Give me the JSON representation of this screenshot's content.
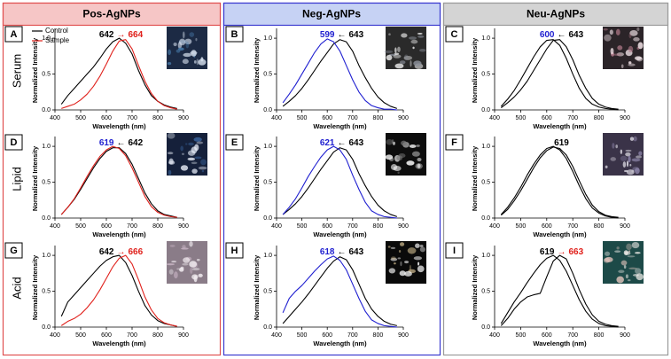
{
  "column_titles": [
    "Pos-AgNPs",
    "Neg-AgNPs",
    "Neu-AgNPs"
  ],
  "row_titles": [
    "Serum",
    "Lipid",
    "Acid"
  ],
  "chart_data": [
    {
      "type": "line",
      "panel": "A",
      "xlabel": "Wavelength (nm)",
      "ylabel": "Normalized Intensity",
      "annotation": [
        {
          "text": "642",
          "color": "#000000"
        },
        {
          "text": "→",
          "color": "#e0201b"
        },
        {
          "text": "664",
          "color": "#e0201b"
        }
      ],
      "xlim": [
        400,
        900
      ],
      "ylim": [
        0,
        1.1
      ],
      "xticks": [
        400,
        500,
        600,
        700,
        800,
        900
      ],
      "yticks": [
        {
          "value": 0,
          "label": "0.0"
        },
        {
          "value": 0.5,
          "label": "0.5"
        },
        {
          "value": 1,
          "label": "1.0"
        }
      ],
      "x": [
        425,
        450,
        475,
        500,
        525,
        550,
        575,
        600,
        625,
        650,
        675,
        700,
        725,
        750,
        775,
        800,
        825,
        850,
        875
      ],
      "series": [
        {
          "name": "Control",
          "color": "#000000",
          "values": [
            0.08,
            0.2,
            0.3,
            0.4,
            0.5,
            0.6,
            0.72,
            0.85,
            0.95,
            1.0,
            0.93,
            0.78,
            0.55,
            0.35,
            0.2,
            0.12,
            0.07,
            0.04,
            0.02
          ]
        },
        {
          "name": "Sample",
          "color": "#e0201b",
          "values": [
            0.02,
            0.05,
            0.08,
            0.14,
            0.22,
            0.33,
            0.47,
            0.64,
            0.82,
            0.96,
            0.98,
            0.85,
            0.62,
            0.4,
            0.23,
            0.12,
            0.06,
            0.03,
            0.01
          ]
        }
      ]
    },
    {
      "type": "line",
      "panel": "B",
      "xlabel": "Wavelength (nm)",
      "ylabel": "Normalized Intensity",
      "annotation": [
        {
          "text": "599",
          "color": "#1f1fd0"
        },
        {
          "text": "←",
          "color": "#000000"
        },
        {
          "text": "643",
          "color": "#000000"
        }
      ],
      "xlim": [
        400,
        900
      ],
      "ylim": [
        0,
        1.1
      ],
      "xticks": [
        400,
        500,
        600,
        700,
        800,
        900
      ],
      "yticks": [
        {
          "value": 0,
          "label": "0.0"
        },
        {
          "value": 0.5,
          "label": "0.5"
        },
        {
          "value": 1,
          "label": "1.0"
        }
      ],
      "x": [
        425,
        450,
        475,
        500,
        525,
        550,
        575,
        600,
        625,
        650,
        675,
        700,
        725,
        750,
        775,
        800,
        825,
        850,
        875
      ],
      "series": [
        {
          "color": "#000000",
          "values": [
            0.05,
            0.12,
            0.2,
            0.3,
            0.42,
            0.55,
            0.68,
            0.8,
            0.92,
            0.98,
            0.95,
            0.82,
            0.62,
            0.45,
            0.3,
            0.18,
            0.1,
            0.05,
            0.02
          ]
        },
        {
          "color": "#1f1fd0",
          "values": [
            0.1,
            0.22,
            0.35,
            0.5,
            0.65,
            0.8,
            0.92,
            0.99,
            0.95,
            0.82,
            0.62,
            0.42,
            0.25,
            0.13,
            0.06,
            0.03,
            0.01,
            0.01,
            0.0
          ]
        }
      ]
    },
    {
      "type": "line",
      "panel": "C",
      "xlabel": "Wavelength (nm)",
      "ylabel": "Normalized Intensity",
      "annotation": [
        {
          "text": "600",
          "color": "#1f1fd0"
        },
        {
          "text": "←",
          "color": "#000000"
        },
        {
          "text": "643",
          "color": "#000000"
        }
      ],
      "xlim": [
        400,
        900
      ],
      "ylim": [
        0,
        1.1
      ],
      "xticks": [
        400,
        500,
        600,
        700,
        800,
        900
      ],
      "yticks": [
        {
          "value": 0,
          "label": "0.0"
        },
        {
          "value": 0.5,
          "label": "0.5"
        },
        {
          "value": 1,
          "label": "1.0"
        }
      ],
      "x": [
        425,
        450,
        475,
        500,
        525,
        550,
        575,
        600,
        625,
        650,
        675,
        700,
        725,
        750,
        775,
        800,
        825,
        850,
        875
      ],
      "series": [
        {
          "color": "#000000",
          "values": [
            0.03,
            0.1,
            0.18,
            0.28,
            0.4,
            0.55,
            0.7,
            0.85,
            0.97,
            0.98,
            0.88,
            0.7,
            0.48,
            0.3,
            0.16,
            0.08,
            0.04,
            0.02,
            0.01
          ]
        },
        {
          "color": "#000000",
          "values": [
            0.05,
            0.15,
            0.27,
            0.42,
            0.58,
            0.74,
            0.88,
            0.97,
            0.98,
            0.9,
            0.72,
            0.5,
            0.3,
            0.16,
            0.08,
            0.04,
            0.02,
            0.01,
            0.0
          ]
        }
      ]
    },
    {
      "type": "line",
      "panel": "D",
      "xlabel": "Wavelength (nm)",
      "ylabel": "Normalized Intensity",
      "annotation": [
        {
          "text": "619",
          "color": "#1f1fd0"
        },
        {
          "text": "←",
          "color": "#000000"
        },
        {
          "text": "642",
          "color": "#000000"
        }
      ],
      "xlim": [
        400,
        900
      ],
      "ylim": [
        0,
        1.1
      ],
      "xticks": [
        400,
        500,
        600,
        700,
        800,
        900
      ],
      "yticks": [
        {
          "value": 0,
          "label": "0.0"
        },
        {
          "value": 0.5,
          "label": "0.5"
        },
        {
          "value": 1,
          "label": "1.0"
        }
      ],
      "x": [
        425,
        450,
        475,
        500,
        525,
        550,
        575,
        600,
        625,
        650,
        675,
        700,
        725,
        750,
        775,
        800,
        825,
        850,
        875
      ],
      "series": [
        {
          "color": "#000000",
          "values": [
            0.05,
            0.15,
            0.26,
            0.4,
            0.55,
            0.7,
            0.83,
            0.93,
            0.98,
            0.98,
            0.9,
            0.75,
            0.55,
            0.35,
            0.2,
            0.1,
            0.05,
            0.03,
            0.01
          ]
        },
        {
          "color": "#e0201b",
          "values": [
            0.05,
            0.15,
            0.27,
            0.42,
            0.58,
            0.73,
            0.86,
            0.95,
            1.0,
            0.97,
            0.87,
            0.7,
            0.5,
            0.3,
            0.16,
            0.08,
            0.04,
            0.02,
            0.01
          ]
        }
      ]
    },
    {
      "type": "line",
      "panel": "E",
      "xlabel": "Wavelength (nm)",
      "ylabel": "Normalized Intensity",
      "annotation": [
        {
          "text": "621",
          "color": "#1f1fd0"
        },
        {
          "text": "←",
          "color": "#000000"
        },
        {
          "text": "643",
          "color": "#000000"
        }
      ],
      "xlim": [
        400,
        900
      ],
      "ylim": [
        0,
        1.1
      ],
      "xticks": [
        400,
        500,
        600,
        700,
        800,
        900
      ],
      "yticks": [
        {
          "value": 0,
          "label": "0.0"
        },
        {
          "value": 0.5,
          "label": "0.5"
        },
        {
          "value": 1,
          "label": "1.0"
        }
      ],
      "x": [
        425,
        450,
        475,
        500,
        525,
        550,
        575,
        600,
        625,
        650,
        675,
        700,
        725,
        750,
        775,
        800,
        825,
        850,
        875
      ],
      "series": [
        {
          "color": "#000000",
          "values": [
            0.05,
            0.12,
            0.2,
            0.3,
            0.42,
            0.55,
            0.68,
            0.8,
            0.92,
            0.98,
            0.95,
            0.82,
            0.62,
            0.45,
            0.3,
            0.18,
            0.1,
            0.05,
            0.02
          ]
        },
        {
          "color": "#1f1fd0",
          "values": [
            0.05,
            0.15,
            0.27,
            0.42,
            0.58,
            0.72,
            0.85,
            0.95,
            1.0,
            0.95,
            0.82,
            0.6,
            0.4,
            0.22,
            0.1,
            0.05,
            0.02,
            0.01,
            0.0
          ]
        }
      ]
    },
    {
      "type": "line",
      "panel": "F",
      "xlabel": "Wavelength (nm)",
      "ylabel": "Normalized Intensity",
      "annotation": [
        {
          "text": "619",
          "color": "#000000"
        }
      ],
      "xlim": [
        400,
        900
      ],
      "ylim": [
        0,
        1.1
      ],
      "xticks": [
        400,
        500,
        600,
        700,
        800,
        900
      ],
      "yticks": [
        {
          "value": 0,
          "label": "0.0"
        },
        {
          "value": 0.5,
          "label": "0.5"
        },
        {
          "value": 1,
          "label": "1.0"
        }
      ],
      "x": [
        425,
        450,
        475,
        500,
        525,
        550,
        575,
        600,
        625,
        650,
        675,
        700,
        725,
        750,
        775,
        800,
        825,
        850,
        875
      ],
      "series": [
        {
          "color": "#000000",
          "values": [
            0.04,
            0.12,
            0.24,
            0.38,
            0.54,
            0.7,
            0.84,
            0.94,
            0.99,
            0.97,
            0.88,
            0.72,
            0.52,
            0.33,
            0.18,
            0.09,
            0.04,
            0.02,
            0.01
          ]
        },
        {
          "color": "#000000",
          "values": [
            0.05,
            0.15,
            0.28,
            0.43,
            0.6,
            0.75,
            0.88,
            0.97,
            1.0,
            0.95,
            0.83,
            0.65,
            0.45,
            0.27,
            0.14,
            0.07,
            0.03,
            0.01,
            0.0
          ]
        }
      ]
    },
    {
      "type": "line",
      "panel": "G",
      "xlabel": "Wavelength (nm)",
      "ylabel": "Normalized Intensity",
      "annotation": [
        {
          "text": "642",
          "color": "#000000"
        },
        {
          "text": "→",
          "color": "#e0201b"
        },
        {
          "text": "666",
          "color": "#e0201b"
        }
      ],
      "xlim": [
        400,
        900
      ],
      "ylim": [
        0,
        1.1
      ],
      "xticks": [
        400,
        500,
        600,
        700,
        800,
        900
      ],
      "yticks": [
        {
          "value": 0,
          "label": "0.0"
        },
        {
          "value": 0.5,
          "label": "0.5"
        },
        {
          "value": 1,
          "label": "1.0"
        }
      ],
      "x": [
        425,
        450,
        475,
        500,
        525,
        550,
        575,
        600,
        625,
        650,
        675,
        700,
        725,
        750,
        775,
        800,
        825,
        850,
        875
      ],
      "series": [
        {
          "color": "#000000",
          "values": [
            0.15,
            0.35,
            0.45,
            0.55,
            0.65,
            0.75,
            0.85,
            0.93,
            0.98,
            1.0,
            0.9,
            0.72,
            0.5,
            0.3,
            0.17,
            0.09,
            0.05,
            0.03,
            0.01
          ]
        },
        {
          "color": "#e0201b",
          "values": [
            0.02,
            0.08,
            0.12,
            0.18,
            0.27,
            0.38,
            0.52,
            0.68,
            0.84,
            0.96,
            1.0,
            0.88,
            0.66,
            0.42,
            0.24,
            0.12,
            0.06,
            0.03,
            0.01
          ]
        }
      ]
    },
    {
      "type": "line",
      "panel": "H",
      "xlabel": "Wavelength (nm)",
      "ylabel": "Normalized Intensity",
      "annotation": [
        {
          "text": "618",
          "color": "#1f1fd0"
        },
        {
          "text": "←",
          "color": "#000000"
        },
        {
          "text": "643",
          "color": "#000000"
        }
      ],
      "xlim": [
        400,
        900
      ],
      "ylim": [
        0,
        1.1
      ],
      "xticks": [
        400,
        500,
        600,
        700,
        800,
        900
      ],
      "yticks": [
        {
          "value": 0,
          "label": "0.0"
        },
        {
          "value": 0.5,
          "label": "0.5"
        },
        {
          "value": 1,
          "label": "1.0"
        }
      ],
      "x": [
        425,
        450,
        475,
        500,
        525,
        550,
        575,
        600,
        625,
        650,
        675,
        700,
        725,
        750,
        775,
        800,
        825,
        850,
        875
      ],
      "series": [
        {
          "color": "#000000",
          "values": [
            0.05,
            0.15,
            0.25,
            0.35,
            0.46,
            0.58,
            0.7,
            0.82,
            0.92,
            0.98,
            0.94,
            0.8,
            0.6,
            0.4,
            0.25,
            0.15,
            0.08,
            0.04,
            0.02
          ]
        },
        {
          "color": "#1f1fd0",
          "values": [
            0.2,
            0.4,
            0.5,
            0.58,
            0.68,
            0.78,
            0.87,
            0.95,
            0.99,
            0.93,
            0.8,
            0.6,
            0.4,
            0.22,
            0.1,
            0.05,
            0.02,
            0.01,
            0.0
          ]
        }
      ]
    },
    {
      "type": "line",
      "panel": "I",
      "xlabel": "Wavelength (nm)",
      "ylabel": "Normalized Intensity",
      "annotation": [
        {
          "text": "619",
          "color": "#000000"
        },
        {
          "text": "→",
          "color": "#e0201b"
        },
        {
          "text": "663",
          "color": "#e0201b"
        }
      ],
      "xlim": [
        400,
        900
      ],
      "ylim": [
        0,
        1.1
      ],
      "xticks": [
        400,
        500,
        600,
        700,
        800,
        900
      ],
      "yticks": [
        {
          "value": 0,
          "label": "0.0"
        },
        {
          "value": 0.5,
          "label": "0.5"
        },
        {
          "value": 1,
          "label": "1.0"
        }
      ],
      "x": [
        425,
        450,
        475,
        500,
        525,
        550,
        575,
        600,
        625,
        650,
        675,
        700,
        725,
        750,
        775,
        800,
        825,
        850,
        875
      ],
      "series": [
        {
          "color": "#000000",
          "values": [
            0.05,
            0.2,
            0.35,
            0.48,
            0.62,
            0.75,
            0.87,
            0.96,
            1.0,
            0.93,
            0.78,
            0.58,
            0.38,
            0.22,
            0.11,
            0.05,
            0.02,
            0.01,
            0.0
          ]
        },
        {
          "color": "#000000",
          "values": [
            0.02,
            0.12,
            0.25,
            0.35,
            0.42,
            0.45,
            0.47,
            0.7,
            0.92,
            1.0,
            0.95,
            0.75,
            0.52,
            0.32,
            0.17,
            0.08,
            0.04,
            0.02,
            0.01
          ]
        }
      ]
    }
  ]
}
